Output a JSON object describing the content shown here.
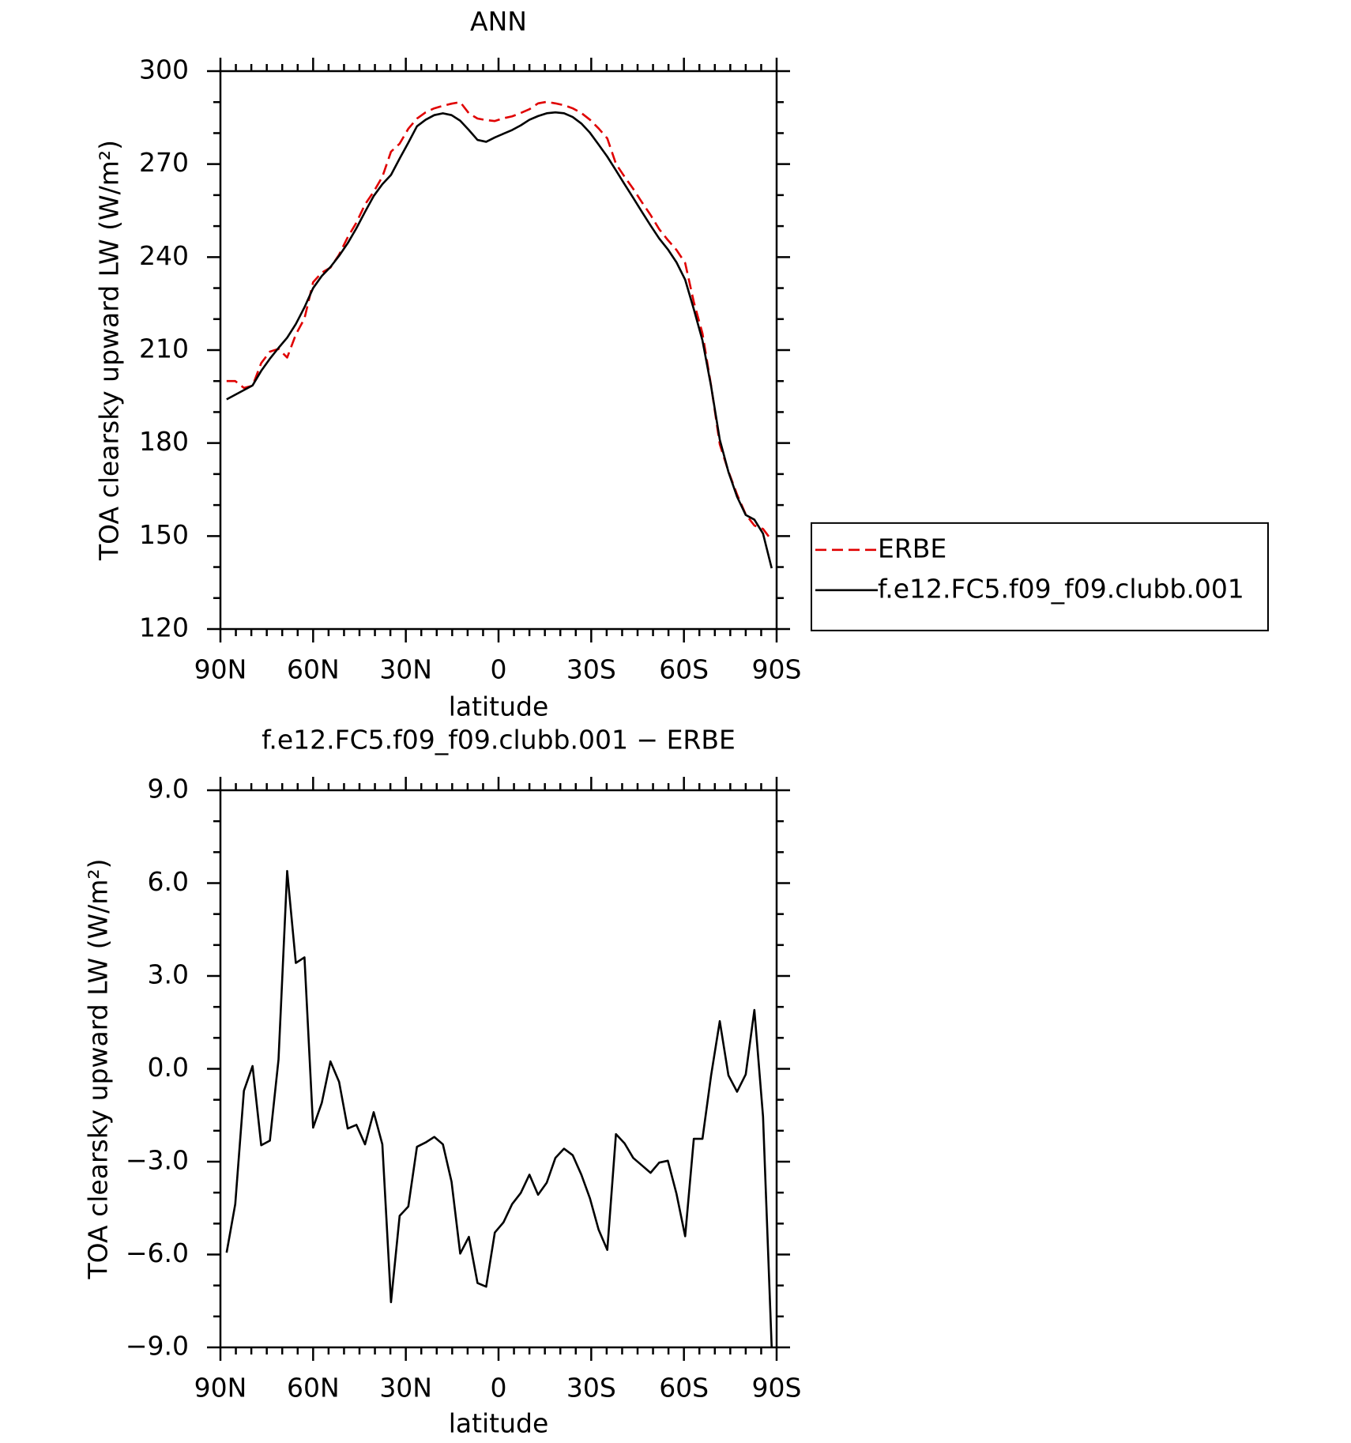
{
  "chart_data": [
    {
      "type": "line",
      "title": "ANN",
      "xlabel": "latitude",
      "ylabel": "TOA clearsky upward LW (W/m²)",
      "xlim": [
        90,
        -90
      ],
      "xticks": [
        {
          "value": 90,
          "label": "90N"
        },
        {
          "value": 60,
          "label": "60N"
        },
        {
          "value": 30,
          "label": "30N"
        },
        0,
        {
          "value": -30,
          "label": "30S"
        },
        {
          "value": -60,
          "label": "60S"
        },
        {
          "value": -90,
          "label": "90S"
        }
      ],
      "ylim": [
        120,
        300
      ],
      "yticks": [
        300,
        270,
        240,
        210,
        180,
        150,
        120
      ],
      "legend": "right",
      "x": [
        88.0,
        85.2,
        82.4,
        79.6,
        76.8,
        74.0,
        71.2,
        68.4,
        65.6,
        62.8,
        60.0,
        57.2,
        54.4,
        51.6,
        48.8,
        46.0,
        43.2,
        40.4,
        37.6,
        34.8,
        32.0,
        29.2,
        26.4,
        23.6,
        20.8,
        18.0,
        15.2,
        12.4,
        9.6,
        6.8,
        4.0,
        1.2,
        -1.6,
        -4.4,
        -7.2,
        -10.0,
        -12.8,
        -15.6,
        -18.4,
        -21.2,
        -24.0,
        -26.8,
        -29.6,
        -32.4,
        -35.2,
        -38.0,
        -40.8,
        -43.6,
        -46.4,
        -49.2,
        -52.0,
        -54.8,
        -57.6,
        -60.4,
        -63.2,
        -66.0,
        -68.8,
        -71.6,
        -74.4,
        -77.2,
        -80.0,
        -82.8,
        -85.6,
        -88.4
      ],
      "series": [
        {
          "name": "ERBE",
          "color": "#e00000",
          "linestyle": "dashed",
          "values": [
            200.0,
            200.0,
            197.8,
            198.5,
            205.8,
            209.5,
            210.4,
            207.6,
            215.0,
            220.2,
            231.9,
            235.0,
            236.6,
            240.8,
            246.4,
            251.1,
            257.0,
            261.1,
            265.9,
            274.0,
            276.6,
            281.4,
            284.7,
            286.7,
            288.0,
            288.8,
            289.5,
            290.0,
            286.4,
            284.7,
            284.2,
            283.9,
            284.8,
            285.4,
            286.5,
            287.7,
            289.6,
            290.1,
            289.6,
            289.0,
            288.0,
            286.5,
            284.3,
            281.5,
            278.3,
            270.1,
            265.9,
            262.0,
            257.7,
            253.6,
            249.0,
            245.5,
            242.3,
            238.1,
            225.5,
            215.4,
            198.5,
            179.6,
            170.9,
            163.4,
            157.0,
            153.4,
            152.3,
            148.6
          ]
        },
        {
          "name": "f.e12.FC5.f09_f09.clubb.001",
          "color": "#000000",
          "linestyle": "solid",
          "values": [
            194.1,
            195.6,
            197.1,
            198.6,
            203.3,
            207.2,
            210.7,
            214.0,
            218.4,
            223.8,
            230.0,
            233.9,
            236.8,
            240.4,
            244.5,
            249.3,
            254.6,
            259.7,
            263.5,
            266.5,
            271.8,
            276.9,
            282.2,
            284.3,
            285.8,
            286.4,
            285.8,
            284.0,
            281.0,
            277.8,
            277.2,
            278.6,
            279.8,
            281.0,
            282.5,
            284.3,
            285.5,
            286.4,
            286.7,
            286.4,
            285.2,
            283.1,
            280.1,
            276.3,
            272.4,
            268.0,
            263.5,
            259.1,
            254.6,
            250.2,
            246.0,
            242.5,
            238.3,
            232.7,
            223.2,
            213.1,
            198.3,
            181.1,
            170.7,
            162.7,
            156.8,
            155.3,
            150.8,
            139.6
          ]
        }
      ]
    },
    {
      "type": "line",
      "title": "f.e12.FC5.f09_f09.clubb.001 − ERBE",
      "xlabel": "latitude",
      "ylabel": "TOA clearsky upward LW (W/m²)",
      "xlim": [
        90,
        -90
      ],
      "xticks": [
        {
          "value": 90,
          "label": "90N"
        },
        {
          "value": 60,
          "label": "60N"
        },
        {
          "value": 30,
          "label": "30N"
        },
        0,
        {
          "value": -30,
          "label": "30S"
        },
        {
          "value": -60,
          "label": "60S"
        },
        {
          "value": -90,
          "label": "90S"
        }
      ],
      "ylim": [
        -9,
        9
      ],
      "yticks": [
        {
          "value": 9,
          "label": "9.0"
        },
        {
          "value": 6,
          "label": "6.0"
        },
        {
          "value": 3,
          "label": "3.0"
        },
        {
          "value": 0,
          "label": "0.0"
        },
        {
          "value": -3,
          "label": "−3.0"
        },
        {
          "value": -6,
          "label": "−6.0"
        },
        {
          "value": -9,
          "label": "−9.0"
        }
      ],
      "x": [
        88.0,
        85.2,
        82.4,
        79.6,
        76.8,
        74.0,
        71.2,
        68.4,
        65.6,
        62.8,
        60.0,
        57.2,
        54.4,
        51.6,
        48.8,
        46.0,
        43.2,
        40.4,
        37.6,
        34.8,
        32.0,
        29.2,
        26.4,
        23.6,
        20.8,
        18.0,
        15.2,
        12.4,
        9.6,
        6.8,
        4.0,
        1.2,
        -1.6,
        -4.4,
        -7.2,
        -10.0,
        -12.8,
        -15.6,
        -18.4,
        -21.2,
        -24.0,
        -26.8,
        -29.6,
        -32.4,
        -35.2,
        -38.0,
        -40.8,
        -43.6,
        -46.4,
        -49.2,
        -52.0,
        -54.8,
        -57.6,
        -60.4,
        -63.2,
        -66.0,
        -68.8,
        -71.6,
        -74.4,
        -77.2,
        -80.0,
        -82.8,
        -85.6,
        -88.4
      ],
      "series": [
        {
          "color": "#000000",
          "linestyle": "solid",
          "values": [
            -5.94,
            -4.37,
            -0.71,
            0.09,
            -2.47,
            -2.32,
            0.3,
            6.39,
            3.42,
            3.6,
            -1.9,
            -1.1,
            0.24,
            -0.42,
            -1.93,
            -1.81,
            -2.44,
            -1.4,
            -2.44,
            -7.54,
            -4.75,
            -4.45,
            -2.52,
            -2.38,
            -2.2,
            -2.44,
            -3.65,
            -5.97,
            -5.43,
            -6.92,
            -7.04,
            -5.29,
            -4.96,
            -4.37,
            -4.01,
            -3.42,
            -4.07,
            -3.68,
            -2.88,
            -2.58,
            -2.79,
            -3.42,
            -4.19,
            -5.2,
            -5.85,
            -2.11,
            -2.41,
            -2.88,
            -3.12,
            -3.36,
            -3.03,
            -2.97,
            -4.04,
            -5.41,
            -2.26,
            -2.26,
            -0.21,
            1.54,
            -0.21,
            -0.74,
            -0.18,
            1.9,
            -1.54,
            -9.0
          ]
        }
      ]
    }
  ]
}
